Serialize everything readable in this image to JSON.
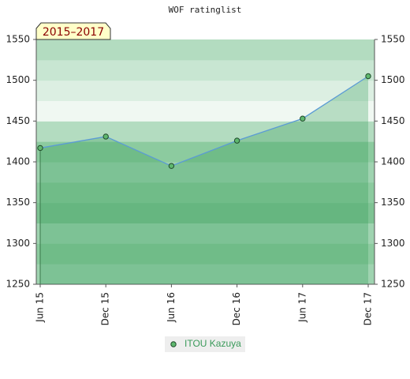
{
  "chart_data": {
    "type": "line",
    "title": "WOF ratinglist",
    "annotation": "2015–2017",
    "categories": [
      "Jun 15",
      "Dec 15",
      "Jun 16",
      "Dec 16",
      "Jun 17",
      "Dec 17"
    ],
    "series": [
      {
        "name": "ITOU Kazuya",
        "color": "#5b9bd5",
        "values": [
          1417,
          1431,
          1395,
          1426,
          1453,
          1505
        ]
      }
    ],
    "ylim": [
      1250,
      1550
    ],
    "yticks": [
      1250,
      1300,
      1350,
      1400,
      1450,
      1500,
      1550
    ],
    "y2lim": [
      1250,
      1550
    ],
    "y2ticks": [
      1250,
      1300,
      1350,
      1400,
      1450,
      1500,
      1550
    ],
    "area": true
  }
}
